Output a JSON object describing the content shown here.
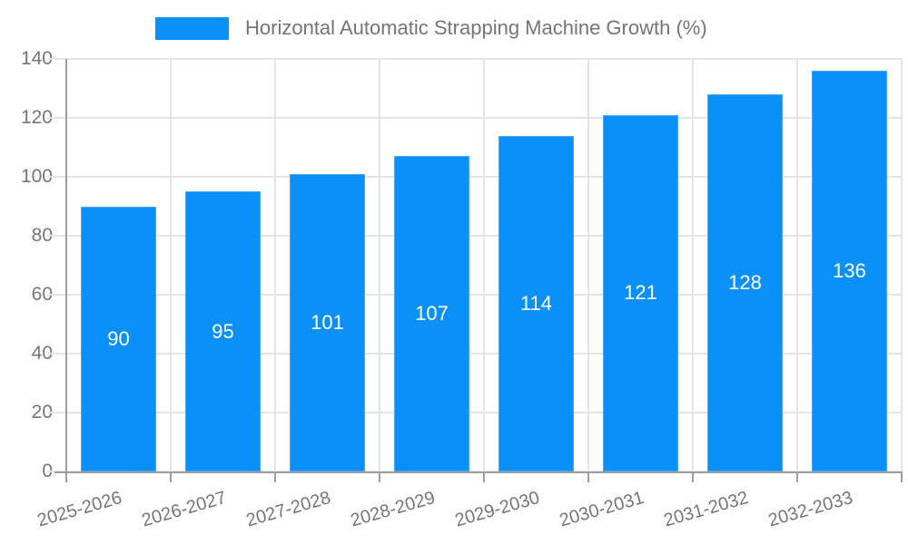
{
  "chart_data": {
    "type": "bar",
    "title": "Horizontal Automatic Strapping Machine Growth (%)",
    "categories": [
      "2025-2026",
      "2026-2027",
      "2027-2028",
      "2028-2029",
      "2029-2030",
      "2030-2031",
      "2031-2032",
      "2032-2033"
    ],
    "values": [
      90,
      95,
      101,
      107,
      114,
      121,
      128,
      136
    ],
    "xlabel": "",
    "ylabel": "",
    "ylim": [
      0,
      140
    ],
    "yticks": [
      0,
      20,
      40,
      60,
      80,
      100,
      120,
      140
    ],
    "grid": true,
    "legend_position": "top",
    "bar_labels_inside": true,
    "colors": {
      "bar": "#0a90f8",
      "bar_edge": "#47a9f5",
      "bar_label": "#ffffff",
      "axis_text": "#757575",
      "grid_line": "#e4e4e4",
      "axis_line": "#9e9e9e",
      "background": "#ffffff"
    }
  }
}
